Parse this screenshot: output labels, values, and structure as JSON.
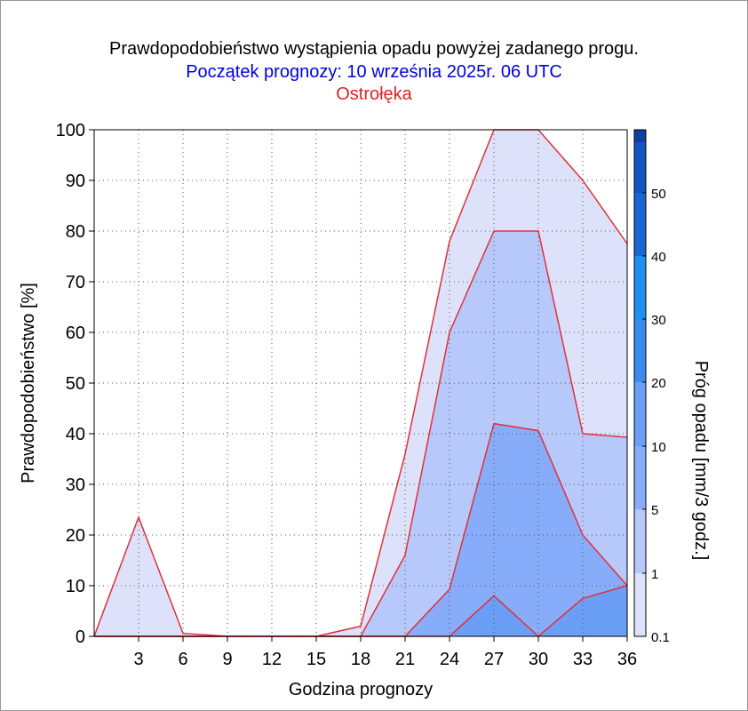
{
  "chart_data": {
    "type": "area",
    "title": "Prawdopodobieństwo wystąpienia opadu powyżej zadanego progu.",
    "subtitle": "Początek prognozy: 10 września 2025r. 06 UTC",
    "location": "Ostrołęka",
    "xlabel": "Godzina prognozy",
    "ylabel": "Prawdopodobieństwo [%]",
    "colorbar_label": "Próg opadu [mm/3 godz.]",
    "xlim": [
      0,
      36
    ],
    "ylim": [
      0,
      100
    ],
    "x_ticks": [
      "3",
      "6",
      "9",
      "12",
      "15",
      "18",
      "21",
      "24",
      "27",
      "30",
      "33",
      "36"
    ],
    "y_ticks": [
      "0",
      "10",
      "20",
      "30",
      "40",
      "50",
      "60",
      "70",
      "80",
      "90",
      "100"
    ],
    "grid": true,
    "colors": {
      "title": "#000000",
      "subtitle": "#0000dd",
      "location": "#dd2222",
      "contour_line": "#e0303a"
    },
    "x": [
      0,
      3,
      6,
      9,
      12,
      15,
      18,
      21,
      24,
      27,
      30,
      33,
      36
    ],
    "series": [
      {
        "threshold": 0.1,
        "color": "#dde2fa",
        "values": [
          0,
          23.5,
          0.6,
          0,
          0,
          0,
          2,
          36,
          78,
          100,
          100,
          90,
          77.5
        ]
      },
      {
        "threshold": 1,
        "color": "#b7c9fa",
        "values": [
          0,
          0,
          0,
          0,
          0,
          0,
          0,
          16,
          60,
          80,
          80,
          40,
          39.3
        ]
      },
      {
        "threshold": 5,
        "color": "#87adfa",
        "values": [
          0,
          0,
          0,
          0,
          0,
          0,
          0,
          0,
          9.3,
          42,
          40.6,
          20,
          10
        ]
      },
      {
        "threshold": 10,
        "color": "#6b9ff6",
        "values": [
          0,
          0,
          0,
          0,
          0,
          0,
          0,
          0,
          0,
          8,
          0,
          7.5,
          10
        ]
      }
    ],
    "colorbar": {
      "labels": [
        "0.1",
        "1",
        "5",
        "10",
        "20",
        "30",
        "40",
        "50"
      ],
      "bands": [
        {
          "from": "0.1",
          "to": "1",
          "color": "#dde2fa"
        },
        {
          "from": "1",
          "to": "5",
          "color": "#b7c9fa"
        },
        {
          "from": "5",
          "to": "10",
          "color": "#87adfa"
        },
        {
          "from": "10",
          "to": "20",
          "color": "#6b9ff6"
        },
        {
          "from": "20",
          "to": "30",
          "color": "#3a8af0"
        },
        {
          "from": "30",
          "to": "40",
          "color": "#1e90f0"
        },
        {
          "from": "40",
          "to": "50",
          "color": "#1a66d4"
        },
        {
          "from": "50",
          "to": "60",
          "color": "#1552c2"
        },
        {
          "from": "60",
          "to": "",
          "color": "#0e3ea6"
        }
      ]
    }
  }
}
